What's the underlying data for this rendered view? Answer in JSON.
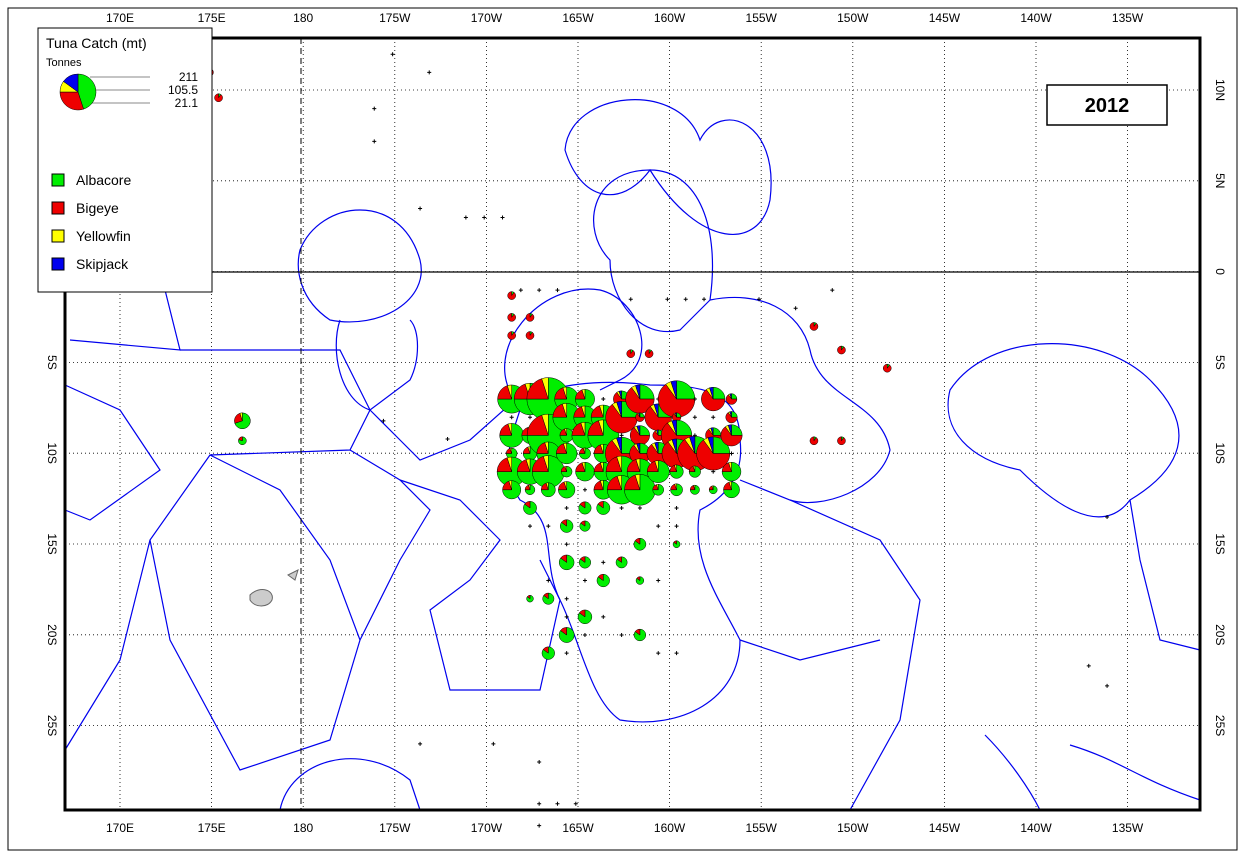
{
  "legend": {
    "title": "Tuna Catch (mt)",
    "unit": "Tonnes",
    "scale": [
      211,
      105.5,
      21.1
    ],
    "species": [
      {
        "name": "Albacore",
        "color": "#00ee00"
      },
      {
        "name": "Bigeye",
        "color": "#ee0000"
      },
      {
        "name": "Yellowfin",
        "color": "#ffff00"
      },
      {
        "name": "Skipjack",
        "color": "#0000ee"
      }
    ]
  },
  "year": "2012",
  "lon_labels": [
    "170E",
    "175E",
    "180",
    "175W",
    "170W",
    "165W",
    "160W",
    "155W",
    "150W",
    "145W",
    "140W",
    "135W"
  ],
  "lat_labels": [
    "10N",
    "5N",
    "0",
    "5S",
    "10S",
    "15S",
    "20S",
    "25S"
  ]
}
